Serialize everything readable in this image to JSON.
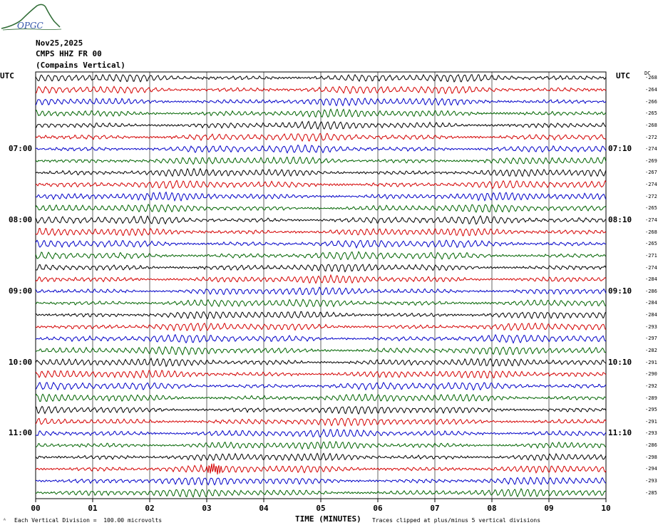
{
  "logo": {
    "text": "OPGC",
    "color": "#2e6b34"
  },
  "header": {
    "date": "Nov25,2025",
    "station": "CMPS HHZ FR 00",
    "location": "(Compains Vertical)"
  },
  "left_timezone": "UTC",
  "right_timezone": "UTC",
  "dc_header": "DC",
  "footer": {
    "scale": "Each Vertical Division =  100.00 microvolts",
    "clip": "Traces clipped at plus/minus 5 vertical divisions"
  },
  "chart_data": {
    "type": "line",
    "title": "",
    "xlabel": "TIME (MINUTES)",
    "ylabel": "",
    "xlim": [
      0,
      10
    ],
    "x_ticks": [
      "00",
      "01",
      "02",
      "03",
      "04",
      "05",
      "06",
      "07",
      "08",
      "09",
      "10"
    ],
    "grid": true,
    "trace_colors": [
      "#000000",
      "#d40000",
      "#0000c8",
      "#006400"
    ],
    "left_hour_labels": [
      {
        "row": 6,
        "label": "07:00"
      },
      {
        "row": 12,
        "label": "08:00"
      },
      {
        "row": 18,
        "label": "09:00"
      },
      {
        "row": 24,
        "label": "10:00"
      },
      {
        "row": 30,
        "label": "11:00"
      }
    ],
    "right_hour_labels": [
      {
        "row": 6,
        "label": "07:10"
      },
      {
        "row": 12,
        "label": "08:10"
      },
      {
        "row": 18,
        "label": "09:10"
      },
      {
        "row": 24,
        "label": "10:10"
      },
      {
        "row": 30,
        "label": "11:10"
      }
    ],
    "dc_offsets": [
      -268,
      -264,
      -266,
      -265,
      -268,
      -272,
      -274,
      -269,
      -267,
      -274,
      -272,
      -265,
      -274,
      -268,
      -265,
      -271,
      -274,
      -284,
      -286,
      -284,
      -284,
      -293,
      -297,
      -282,
      -291,
      -290,
      -292,
      -289,
      -295,
      -291,
      -293,
      -286,
      -298,
      -294,
      -293,
      -285
    ],
    "event": {
      "row": 33,
      "minute_start": 3.0,
      "minute_end": 3.25
    }
  }
}
